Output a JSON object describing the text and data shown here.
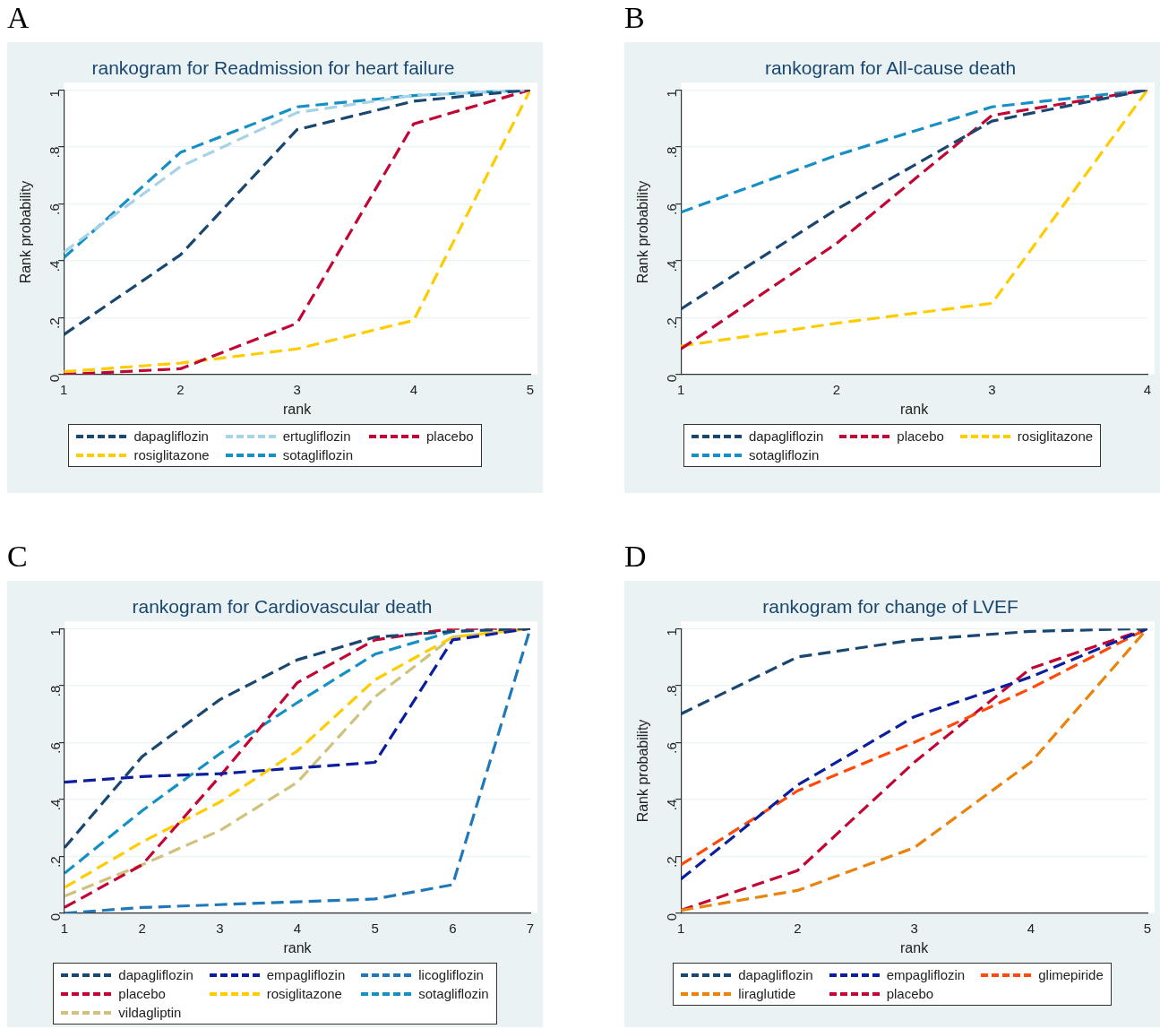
{
  "chart_data": [
    {
      "type": "line",
      "title": "rankogram for Readmission for heart failure",
      "xlabel": "rank",
      "ylabel": "Rank probability",
      "annotations": [
        "A"
      ],
      "x": [
        1,
        2,
        3,
        4,
        5
      ],
      "xlim": [
        1,
        5
      ],
      "xticks": [
        1,
        2,
        3,
        4,
        5
      ],
      "ylim": [
        0,
        1
      ],
      "yticks": [
        {
          "value": 0,
          "label": "0"
        },
        {
          "value": 0.2,
          "label": ".2"
        },
        {
          "value": 0.4,
          "label": ".4"
        },
        {
          "value": 0.6,
          "label": ".6"
        },
        {
          "value": 0.8,
          "label": ".8"
        },
        {
          "value": 1,
          "label": "1"
        }
      ],
      "grid": "y",
      "legend": "bottom",
      "marker": "none",
      "line_style": "dashed",
      "series": [
        {
          "name": "dapagliflozin",
          "color": "#1a476f",
          "values": [
            0.14,
            0.42,
            0.86,
            0.96,
            1
          ]
        },
        {
          "name": "ertugliflozin",
          "color": "#a6d4e6",
          "values": [
            0.43,
            0.73,
            0.92,
            0.98,
            1
          ]
        },
        {
          "name": "placebo",
          "color": "#c10534",
          "values": [
            0,
            0.02,
            0.18,
            0.88,
            1
          ]
        },
        {
          "name": "rosiglitazone",
          "color": "#ffcc00",
          "values": [
            0.01,
            0.04,
            0.09,
            0.19,
            1
          ]
        },
        {
          "name": "sotagliflozin",
          "color": "#1690c4",
          "values": [
            0.41,
            0.78,
            0.94,
            0.98,
            1
          ]
        }
      ]
    },
    {
      "type": "line",
      "title": "rankogram for All-cause death",
      "xlabel": "rank",
      "ylabel": "Rank probability",
      "annotations": [
        "B"
      ],
      "x": [
        1,
        2,
        3,
        4
      ],
      "xlim": [
        1,
        4
      ],
      "xticks": [
        1,
        2,
        3,
        4
      ],
      "ylim": [
        0,
        1
      ],
      "yticks": [
        {
          "value": 0,
          "label": "0"
        },
        {
          "value": 0.2,
          "label": ".2"
        },
        {
          "value": 0.4,
          "label": ".4"
        },
        {
          "value": 0.6,
          "label": ".6"
        },
        {
          "value": 0.8,
          "label": ".8"
        },
        {
          "value": 1,
          "label": "1"
        }
      ],
      "grid": "y",
      "legend": "bottom",
      "marker": "none",
      "line_style": "dashed",
      "series": [
        {
          "name": "dapagliflozin",
          "color": "#1a476f",
          "values": [
            0.23,
            0.58,
            0.89,
            1
          ]
        },
        {
          "name": "placebo",
          "color": "#c10534",
          "values": [
            0.09,
            0.46,
            0.91,
            1
          ]
        },
        {
          "name": "rosiglitazone",
          "color": "#ffcc00",
          "values": [
            0.1,
            0.18,
            0.25,
            1
          ]
        },
        {
          "name": "sotagliflozin",
          "color": "#1690c4",
          "values": [
            0.57,
            0.77,
            0.94,
            1
          ]
        }
      ]
    },
    {
      "type": "line",
      "title": "rankogram for Cardiovascular death",
      "xlabel": "rank",
      "annotations": [
        "C"
      ],
      "x": [
        1,
        2,
        3,
        4,
        5,
        6,
        7
      ],
      "xlim": [
        1,
        7
      ],
      "xticks": [
        1,
        2,
        3,
        4,
        5,
        6,
        7
      ],
      "ylim": [
        0,
        1
      ],
      "yticks": [
        {
          "value": 0,
          "label": "0"
        },
        {
          "value": 0.2,
          "label": ".2"
        },
        {
          "value": 0.4,
          "label": ".4"
        },
        {
          "value": 0.6,
          "label": ".6"
        },
        {
          "value": 0.8,
          "label": ".8"
        },
        {
          "value": 1,
          "label": "1"
        }
      ],
      "grid": "y",
      "legend": "bottom",
      "marker": "none",
      "line_style": "dashed",
      "series": [
        {
          "name": "dapagliflozin",
          "color": "#1a476f",
          "values": [
            0.23,
            0.55,
            0.75,
            0.89,
            0.97,
            0.99,
            1
          ]
        },
        {
          "name": "empagliflozin",
          "color": "#0a1e9e",
          "values": [
            0.46,
            0.48,
            0.49,
            0.51,
            0.53,
            0.96,
            1
          ]
        },
        {
          "name": "licogliflozin",
          "color": "#1f78b8",
          "values": [
            0,
            0.02,
            0.03,
            0.04,
            0.05,
            0.1,
            1
          ]
        },
        {
          "name": "placebo",
          "color": "#c10534",
          "values": [
            0.02,
            0.17,
            0.48,
            0.81,
            0.96,
            1,
            1
          ]
        },
        {
          "name": "rosiglitazone",
          "color": "#ffcc00",
          "values": [
            0.09,
            0.25,
            0.39,
            0.57,
            0.82,
            0.97,
            1
          ]
        },
        {
          "name": "sotagliflozin",
          "color": "#1690c4",
          "values": [
            0.14,
            0.36,
            0.56,
            0.74,
            0.91,
            0.99,
            1
          ]
        },
        {
          "name": "vildagliptin",
          "color": "#cfc27c",
          "values": [
            0.06,
            0.17,
            0.29,
            0.46,
            0.76,
            0.97,
            1
          ]
        }
      ]
    },
    {
      "type": "line",
      "title": "rankogram for change of LVEF",
      "xlabel": "rank",
      "ylabel": "Rank probability",
      "annotations": [
        "D"
      ],
      "x": [
        1,
        2,
        3,
        4,
        5
      ],
      "xlim": [
        1,
        5
      ],
      "xticks": [
        1,
        2,
        3,
        4,
        5
      ],
      "ylim": [
        0,
        1
      ],
      "yticks": [
        {
          "value": 0,
          "label": "0"
        },
        {
          "value": 0.2,
          "label": ".2"
        },
        {
          "value": 0.4,
          "label": ".4"
        },
        {
          "value": 0.6,
          "label": ".6"
        },
        {
          "value": 0.8,
          "label": ".8"
        },
        {
          "value": 1,
          "label": "1"
        }
      ],
      "grid": "y",
      "legend": "bottom",
      "marker": "none",
      "line_style": "dashed",
      "series": [
        {
          "name": "dapagliflozin",
          "color": "#1a476f",
          "values": [
            0.7,
            0.9,
            0.96,
            0.99,
            1
          ]
        },
        {
          "name": "empagliflozin",
          "color": "#0a1e9e",
          "values": [
            0.12,
            0.45,
            0.69,
            0.83,
            1
          ]
        },
        {
          "name": "glimepiride",
          "color": "#ff4a0a",
          "values": [
            0.17,
            0.43,
            0.6,
            0.79,
            1
          ]
        },
        {
          "name": "liraglutide",
          "color": "#e8830c",
          "values": [
            0.01,
            0.08,
            0.23,
            0.53,
            1
          ]
        },
        {
          "name": "placebo",
          "color": "#c10534",
          "values": [
            0.01,
            0.15,
            0.53,
            0.86,
            1
          ]
        }
      ]
    }
  ]
}
